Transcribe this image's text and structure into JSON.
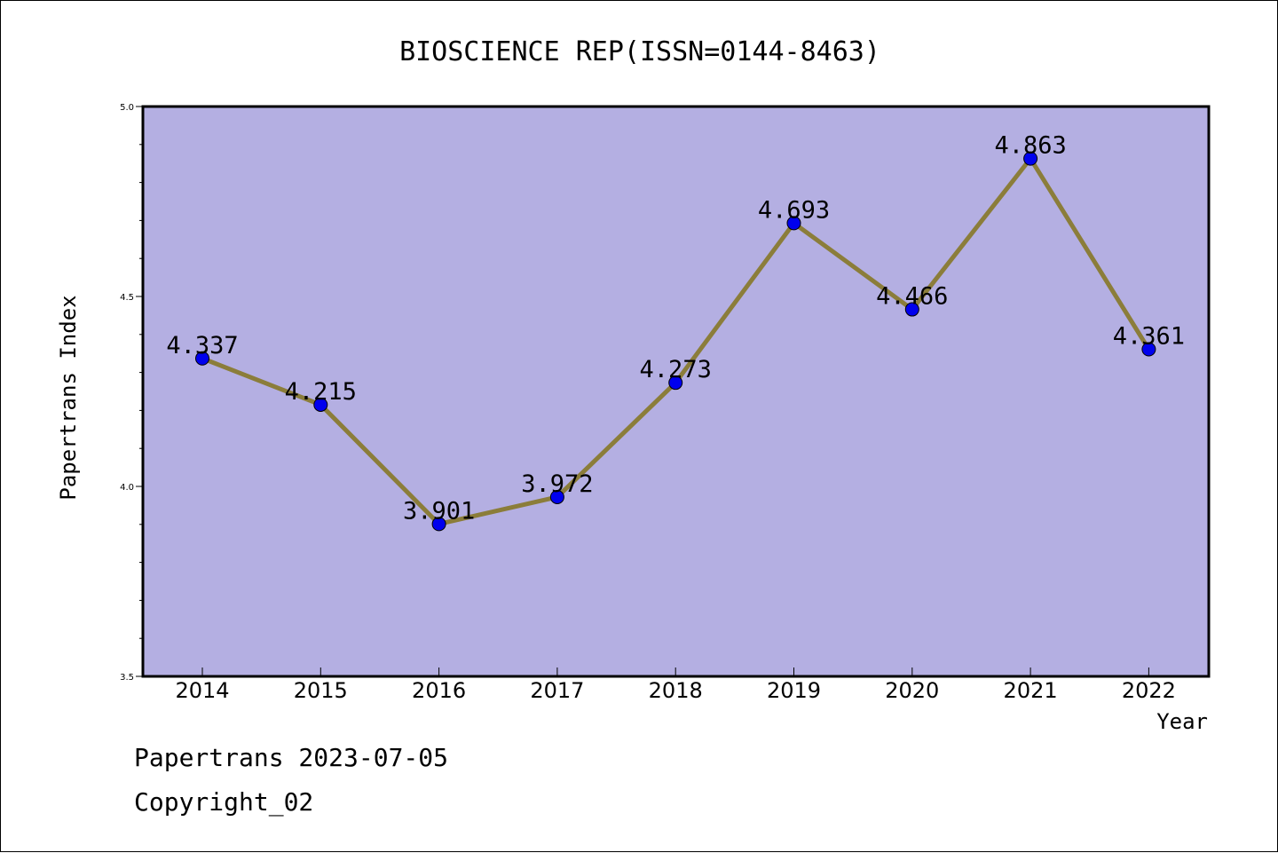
{
  "chart_data": {
    "type": "line",
    "title": "BIOSCIENCE REP(ISSN=0144-8463)",
    "xlabel": "Year",
    "ylabel": "Papertrans Index",
    "categories": [
      "2014",
      "2015",
      "2016",
      "2017",
      "2018",
      "2019",
      "2020",
      "2021",
      "2022"
    ],
    "series": [
      {
        "values": [
          4.337,
          4.215,
          3.901,
          3.972,
          4.273,
          4.693,
          4.466,
          4.863,
          4.361
        ]
      }
    ],
    "data_labels": [
      "4.337",
      "4.215",
      "3.901",
      "3.972",
      "4.273",
      "4.693",
      "4.466",
      "4.863",
      "4.361"
    ],
    "ylim": [
      3.5,
      5.0
    ],
    "yticks": [
      "3.5",
      "4.0",
      "4.5",
      "5.0"
    ],
    "grid": false,
    "colors": {
      "plot_background": "#b4afe2",
      "line": "#8b7d3a",
      "marker": "#0000ee"
    }
  },
  "footer": {
    "line1": "Papertrans 2023-07-05",
    "line2": "Copyright_02"
  }
}
